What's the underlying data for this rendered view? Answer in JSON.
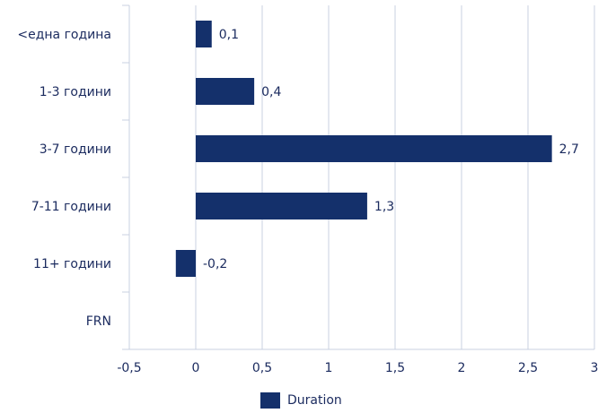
{
  "chart_data": {
    "type": "bar",
    "orientation": "horizontal",
    "categories": [
      "<една година",
      "1-3 години",
      "3-7 години",
      "7-11 години",
      "11+ години",
      "FRN"
    ],
    "series": [
      {
        "name": "Duration",
        "values": [
          0.12,
          0.44,
          2.68,
          1.29,
          -0.15,
          null
        ],
        "data_labels": [
          "0,1",
          "0,4",
          "2,7",
          "1,3",
          "-0,2",
          ""
        ]
      }
    ],
    "xlim": [
      -0.5,
      3
    ],
    "xticks": [
      -0.5,
      0,
      0.5,
      1,
      1.5,
      2,
      2.5,
      3
    ],
    "xtick_labels": [
      "-0,5",
      "0",
      "0,5",
      "1",
      "1,5",
      "2",
      "2,5",
      "3"
    ],
    "grid": true,
    "legend_position": "bottom",
    "colors": {
      "bar": "#14306b",
      "grid": "#c9d1e0",
      "text": "#1a2a5e"
    }
  },
  "legend": {
    "label": "Duration"
  }
}
